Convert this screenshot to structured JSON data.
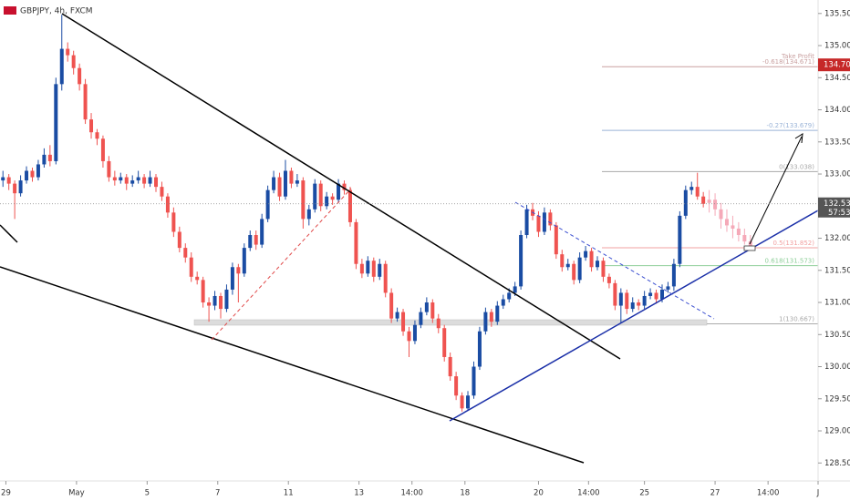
{
  "chart_data": {
    "type": "candlestick",
    "title": "GBPJPY, 4h, FXCM",
    "up_color": "#1a4ca3",
    "down_color": "#ef5350",
    "projection_color": "#f5a9b8",
    "xlim": [
      0,
      139
    ],
    "ylim": [
      128.22,
      135.71
    ],
    "xticks": [
      {
        "value": 1,
        "label": "29"
      },
      {
        "value": 13,
        "label": "May"
      },
      {
        "value": 25,
        "label": "5"
      },
      {
        "value": 37,
        "label": "7"
      },
      {
        "value": 49,
        "label": "11"
      },
      {
        "value": 61,
        "label": "13"
      },
      {
        "value": 70,
        "label": "14:00"
      },
      {
        "value": 79,
        "label": "18"
      },
      {
        "value": 91.5,
        "label": "20"
      },
      {
        "value": 100,
        "label": "14:00"
      },
      {
        "value": 109.5,
        "label": "25"
      },
      {
        "value": 121.5,
        "label": "27"
      },
      {
        "value": 130.5,
        "label": "14:00"
      },
      {
        "value": 139,
        "label": "J"
      }
    ],
    "yticks": [
      {
        "value": 128.5,
        "label": "128.500"
      },
      {
        "value": 129,
        "label": "129.000"
      },
      {
        "value": 129.5,
        "label": "129.500"
      },
      {
        "value": 130,
        "label": "130.000"
      },
      {
        "value": 130.5,
        "label": "130.500"
      },
      {
        "value": 131,
        "label": "131.000"
      },
      {
        "value": 131.5,
        "label": "131.500"
      },
      {
        "value": 132,
        "label": "132.000"
      },
      {
        "value": 132.5,
        "label": "132.500"
      },
      {
        "value": 133,
        "label": "133.000"
      },
      {
        "value": 133.5,
        "label": "133.500"
      },
      {
        "value": 134,
        "label": "134.000"
      },
      {
        "value": 134.5,
        "label": "134.500"
      },
      {
        "value": 135,
        "label": "135.000"
      },
      {
        "value": 135.5,
        "label": "135.500"
      }
    ],
    "candles": [
      [
        132.9,
        133.05,
        132.8,
        132.95
      ],
      [
        132.95,
        133.0,
        132.75,
        132.85
      ],
      [
        132.85,
        132.9,
        132.3,
        132.7
      ],
      [
        132.7,
        132.98,
        132.65,
        132.9
      ],
      [
        132.9,
        133.12,
        132.85,
        133.05
      ],
      [
        133.05,
        133.1,
        132.88,
        132.95
      ],
      [
        132.95,
        133.22,
        132.9,
        133.15
      ],
      [
        133.15,
        133.4,
        133.1,
        133.3
      ],
      [
        133.3,
        133.45,
        133.12,
        133.2
      ],
      [
        133.2,
        134.5,
        133.15,
        134.4
      ],
      [
        134.4,
        135.48,
        134.3,
        134.95
      ],
      [
        134.95,
        135.05,
        134.75,
        134.85
      ],
      [
        134.85,
        134.92,
        134.55,
        134.65
      ],
      [
        134.65,
        134.72,
        134.3,
        134.4
      ],
      [
        134.4,
        134.48,
        133.78,
        133.85
      ],
      [
        133.85,
        133.95,
        133.55,
        133.65
      ],
      [
        133.65,
        133.7,
        133.45,
        133.55
      ],
      [
        133.55,
        133.6,
        133.1,
        133.2
      ],
      [
        133.2,
        133.28,
        132.88,
        132.95
      ],
      [
        132.95,
        133.05,
        132.82,
        132.9
      ],
      [
        132.9,
        133.02,
        132.85,
        132.95
      ],
      [
        132.95,
        133.0,
        132.75,
        132.85
      ],
      [
        132.85,
        132.98,
        132.8,
        132.9
      ],
      [
        132.9,
        133.05,
        132.85,
        132.95
      ],
      [
        132.95,
        133.0,
        132.78,
        132.85
      ],
      [
        132.85,
        133.05,
        132.8,
        132.95
      ],
      [
        132.95,
        133.0,
        132.72,
        132.8
      ],
      [
        132.8,
        132.88,
        132.58,
        132.65
      ],
      [
        132.65,
        132.7,
        132.32,
        132.4
      ],
      [
        132.4,
        132.48,
        132.02,
        132.1
      ],
      [
        132.1,
        132.18,
        131.78,
        131.85
      ],
      [
        131.85,
        131.92,
        131.62,
        131.7
      ],
      [
        131.7,
        131.78,
        131.32,
        131.4
      ],
      [
        131.4,
        131.48,
        131.28,
        131.35
      ],
      [
        131.35,
        131.4,
        130.92,
        131.0
      ],
      [
        131.0,
        131.08,
        130.7,
        130.95
      ],
      [
        130.95,
        131.18,
        130.88,
        131.1
      ],
      [
        131.1,
        131.15,
        130.75,
        130.9
      ],
      [
        130.9,
        131.28,
        130.85,
        131.2
      ],
      [
        131.2,
        131.62,
        131.12,
        131.55
      ],
      [
        131.55,
        131.6,
        131.0,
        131.45
      ],
      [
        131.45,
        131.92,
        131.4,
        131.85
      ],
      [
        131.85,
        132.12,
        131.8,
        132.05
      ],
      [
        132.05,
        132.12,
        131.82,
        131.9
      ],
      [
        131.9,
        132.38,
        131.85,
        132.3
      ],
      [
        132.3,
        132.82,
        132.25,
        132.75
      ],
      [
        132.75,
        133.05,
        132.7,
        132.95
      ],
      [
        132.95,
        133.02,
        132.58,
        132.65
      ],
      [
        132.65,
        133.22,
        132.6,
        133.05
      ],
      [
        133.05,
        133.1,
        132.78,
        132.85
      ],
      [
        132.85,
        133.0,
        132.8,
        132.9
      ],
      [
        132.9,
        132.95,
        132.15,
        132.3
      ],
      [
        132.3,
        132.52,
        132.2,
        132.45
      ],
      [
        132.45,
        132.92,
        132.4,
        132.85
      ],
      [
        132.85,
        132.9,
        132.42,
        132.5
      ],
      [
        132.5,
        132.72,
        132.45,
        132.65
      ],
      [
        132.65,
        132.7,
        132.52,
        132.6
      ],
      [
        132.6,
        132.92,
        132.55,
        132.85
      ],
      [
        132.85,
        132.9,
        132.68,
        132.75
      ],
      [
        132.75,
        132.8,
        132.18,
        132.25
      ],
      [
        132.25,
        132.3,
        131.52,
        131.6
      ],
      [
        131.6,
        131.68,
        131.38,
        131.45
      ],
      [
        131.45,
        131.72,
        131.4,
        131.65
      ],
      [
        131.65,
        131.7,
        131.32,
        131.4
      ],
      [
        131.4,
        131.68,
        131.35,
        131.6
      ],
      [
        131.6,
        131.65,
        131.08,
        131.15
      ],
      [
        131.15,
        131.22,
        130.68,
        130.75
      ],
      [
        130.75,
        130.92,
        130.7,
        130.85
      ],
      [
        130.85,
        130.9,
        130.48,
        130.55
      ],
      [
        130.55,
        130.62,
        130.15,
        130.4
      ],
      [
        130.4,
        130.72,
        130.35,
        130.65
      ],
      [
        130.65,
        130.92,
        130.6,
        130.85
      ],
      [
        130.85,
        131.08,
        130.8,
        131.0
      ],
      [
        131.0,
        131.05,
        130.68,
        130.75
      ],
      [
        130.75,
        130.82,
        130.52,
        130.6
      ],
      [
        130.6,
        130.65,
        130.08,
        130.15
      ],
      [
        130.15,
        130.22,
        129.78,
        129.85
      ],
      [
        129.85,
        129.92,
        129.48,
        129.55
      ],
      [
        129.55,
        129.6,
        129.3,
        129.35
      ],
      [
        129.35,
        129.62,
        129.32,
        129.55
      ],
      [
        129.55,
        130.08,
        129.5,
        130.0
      ],
      [
        130.0,
        130.62,
        129.95,
        130.55
      ],
      [
        130.55,
        130.92,
        130.5,
        130.85
      ],
      [
        130.85,
        130.9,
        130.62,
        130.7
      ],
      [
        130.7,
        131.02,
        130.65,
        130.95
      ],
      [
        130.95,
        131.12,
        130.9,
        131.05
      ],
      [
        131.05,
        131.22,
        131.0,
        131.15
      ],
      [
        131.15,
        131.32,
        131.1,
        131.25
      ],
      [
        131.25,
        132.12,
        131.2,
        132.05
      ],
      [
        132.05,
        132.52,
        132.0,
        132.45
      ],
      [
        132.45,
        132.55,
        132.28,
        132.35
      ],
      [
        132.35,
        132.42,
        132.02,
        132.1
      ],
      [
        132.1,
        132.48,
        132.05,
        132.4
      ],
      [
        132.4,
        132.45,
        132.12,
        132.2
      ],
      [
        132.2,
        132.25,
        131.68,
        131.75
      ],
      [
        131.75,
        131.82,
        131.48,
        131.55
      ],
      [
        131.55,
        131.68,
        131.5,
        131.6
      ],
      [
        131.6,
        131.65,
        131.28,
        131.35
      ],
      [
        131.35,
        131.78,
        131.3,
        131.7
      ],
      [
        131.7,
        131.88,
        131.65,
        131.8
      ],
      [
        131.8,
        131.85,
        131.48,
        131.55
      ],
      [
        131.55,
        131.72,
        131.5,
        131.65
      ],
      [
        131.65,
        131.7,
        131.32,
        131.4
      ],
      [
        131.4,
        131.45,
        131.22,
        131.3
      ],
      [
        131.3,
        131.35,
        130.88,
        130.95
      ],
      [
        130.95,
        131.22,
        130.68,
        131.15
      ],
      [
        131.15,
        131.2,
        130.82,
        130.9
      ],
      [
        130.9,
        131.08,
        130.85,
        131.0
      ],
      [
        131.0,
        131.05,
        130.88,
        130.95
      ],
      [
        130.95,
        131.18,
        130.9,
        131.1
      ],
      [
        131.1,
        131.22,
        131.05,
        131.15
      ],
      [
        131.15,
        131.2,
        130.98,
        131.05
      ],
      [
        131.05,
        131.28,
        131.0,
        131.2
      ],
      [
        131.2,
        131.32,
        131.15,
        131.25
      ],
      [
        131.25,
        131.68,
        131.18,
        131.6
      ],
      [
        131.6,
        132.42,
        131.55,
        132.35
      ],
      [
        132.35,
        132.82,
        132.3,
        132.75
      ],
      [
        132.75,
        132.88,
        132.68,
        132.8
      ],
      [
        132.8,
        133.02,
        132.6,
        132.65
      ],
      [
        132.65,
        132.72,
        132.48,
        132.536
      ]
    ],
    "projection": [
      [
        132.55,
        132.75,
        132.4,
        132.6
      ],
      [
        132.6,
        132.7,
        132.35,
        132.45
      ],
      [
        132.45,
        132.55,
        132.15,
        132.3
      ],
      [
        132.3,
        132.45,
        132.1,
        132.2
      ],
      [
        132.2,
        132.35,
        132.0,
        132.15
      ],
      [
        132.15,
        132.25,
        131.95,
        132.05
      ],
      [
        132.05,
        132.15,
        131.9,
        131.95
      ],
      [
        131.95,
        132.05,
        131.82,
        131.88
      ]
    ],
    "fib_levels": [
      {
        "value": 134.671,
        "label": "-0.618(134.671)",
        "color": "#c9a0a0"
      },
      {
        "value": 133.679,
        "label": "-0.27(133.679)",
        "color": "#9bb4d8"
      },
      {
        "value": 133.038,
        "label": "0(133.038)",
        "color": "#aaaaaa"
      },
      {
        "value": 131.852,
        "label": "0.5(131.852)",
        "color": "#f2a0a0"
      },
      {
        "value": 131.573,
        "label": "0.618(131.573)",
        "color": "#8fcf9a"
      },
      {
        "value": 130.667,
        "label": "1(130.667)",
        "color": "#aaaaaa"
      }
    ],
    "take_profit": "Take Profit",
    "target_tag": {
      "value": 134.7,
      "label": "134.700"
    },
    "last_price": {
      "value": 132.536,
      "label": "132.536"
    },
    "countdown": "57:53"
  }
}
